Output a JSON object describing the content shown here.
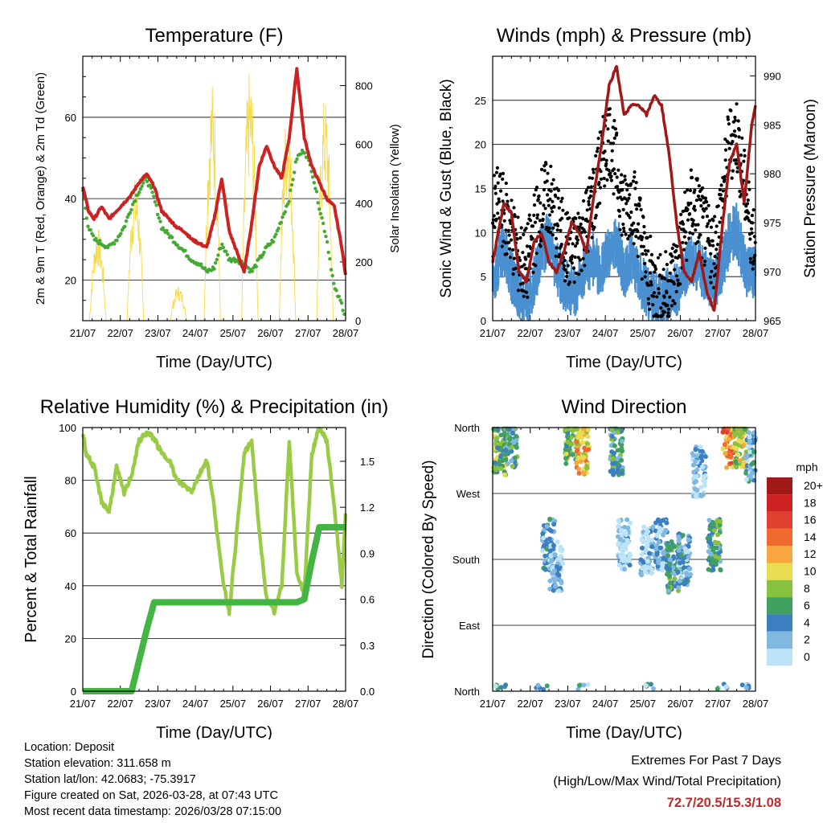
{
  "footer": {
    "location": "Location: Deposit",
    "elevation": "Station elevation: 311.658 m",
    "latlon": "Station lat/lon: 42.0683; -75.3917",
    "created": "Figure created on Sat, 2026-03-28, at 07:43 UTC",
    "timestamp": "Most recent data timestamp: 2026/03/28 07:15:00",
    "extremes_title": "Extremes For Past 7 Days",
    "extremes_subtitle": "(High/Low/Max Wind/Total Precipitation)",
    "extremes_values": "72.7/20.5/15.3/1.08"
  },
  "colors": {
    "temp_red": "#cc2222",
    "dewpoint_green": "#44aa33",
    "solar_yellow": "#f5d94a",
    "gust_black": "#000000",
    "wind_blue": "#4a90d0",
    "pressure_maroon": "#a01818",
    "rh_lightgreen": "#99cc44",
    "rain_green": "#44b544"
  },
  "chart_data": [
    {
      "type": "line",
      "title": "Temperature (F)",
      "xlabel": "Time (Day/UTC)",
      "ylabel": "2m & 9m T (Red, Orange) & 2m Td (Green)",
      "ylabel_right": "Solar Insolation (Yellow)",
      "x_ticks": [
        "21/07",
        "22/07",
        "23/07",
        "24/07",
        "25/07",
        "26/07",
        "27/07",
        "28/07"
      ],
      "x": [
        0,
        0.15,
        0.3,
        0.5,
        0.7,
        0.9,
        1.1,
        1.3,
        1.5,
        1.7,
        1.9,
        2.1,
        2.3,
        2.5,
        2.7,
        2.9,
        3.1,
        3.3,
        3.5,
        3.7,
        3.9,
        4.1,
        4.3,
        4.5,
        4.7,
        4.9,
        5.1,
        5.3,
        5.5,
        5.7,
        5.9,
        6.1,
        6.3,
        6.5,
        6.7,
        6.9,
        7.0
      ],
      "ylim": [
        10,
        75
      ],
      "y_ticks": [
        20,
        40,
        60
      ],
      "y2lim": [
        0,
        900
      ],
      "y2_ticks": [
        0,
        200,
        400,
        600,
        800
      ],
      "series": [
        {
          "name": "2m T",
          "color": "#cc2222",
          "values": [
            43,
            37,
            35,
            38,
            35,
            37,
            39,
            41,
            44,
            46,
            43,
            37,
            35,
            33,
            32,
            30,
            29,
            28,
            35,
            45,
            32,
            27,
            22,
            34,
            48,
            53,
            48,
            45,
            55,
            72,
            55,
            48,
            44,
            40,
            38,
            28,
            21
          ]
        },
        {
          "name": "2m Td",
          "color": "#44aa33",
          "values": [
            42,
            33,
            30,
            29,
            28,
            30,
            33,
            38,
            42,
            45,
            40,
            33,
            31,
            29,
            27,
            25,
            24,
            22,
            23,
            29,
            25,
            25,
            24,
            22,
            25,
            28,
            30,
            35,
            40,
            50,
            52,
            47,
            38,
            30,
            18,
            14,
            11
          ]
        },
        {
          "name": "Solar Insolation",
          "axis": "right",
          "color": "#f5d94a",
          "peaks": [
            [
              0.4,
              320
            ],
            [
              1.4,
              490
            ],
            [
              2.55,
              120
            ],
            [
              3.45,
              820
            ],
            [
              4.45,
              860
            ],
            [
              5.45,
              730
            ],
            [
              6.45,
              770
            ]
          ]
        }
      ]
    },
    {
      "type": "line",
      "title": "Winds (mph) & Pressure (mb)",
      "xlabel": "Time (Day/UTC)",
      "ylabel": "Sonic Wind & Gust (Blue, Black)",
      "ylabel_right": "Station Pressure (Maroon)",
      "x_ticks": [
        "21/07",
        "22/07",
        "23/07",
        "24/07",
        "25/07",
        "26/07",
        "27/07",
        "28/07"
      ],
      "ylim": [
        0,
        30
      ],
      "y_ticks": [
        0,
        5,
        10,
        15,
        20,
        25
      ],
      "y2lim": [
        965,
        992
      ],
      "y2_ticks": [
        965,
        970,
        975,
        980,
        985,
        990
      ],
      "x": [
        0,
        0.1,
        0.3,
        0.5,
        0.7,
        0.9,
        1.1,
        1.3,
        1.5,
        1.7,
        1.9,
        2.1,
        2.3,
        2.5,
        2.7,
        2.9,
        3.1,
        3.3,
        3.5,
        3.7,
        3.9,
        4.1,
        4.3,
        4.5,
        4.7,
        4.9,
        5.1,
        5.3,
        5.5,
        5.7,
        5.9,
        6.1,
        6.3,
        6.5,
        6.7,
        6.9,
        7.0
      ],
      "series": [
        {
          "name": "Station Pressure",
          "axis": "right",
          "color": "#a01818",
          "values": [
            971,
            973,
            977,
            976,
            970,
            969,
            973,
            974,
            971,
            970,
            972,
            975,
            974,
            972,
            978,
            983,
            989,
            991,
            986,
            987,
            987,
            986,
            988,
            987,
            982,
            975,
            970,
            969,
            972,
            968,
            966,
            974,
            981,
            983,
            977,
            985,
            987
          ]
        },
        {
          "name": "Wind",
          "color": "#4a90d0",
          "values": [
            4,
            6,
            8,
            5,
            3,
            2,
            4,
            8,
            9,
            6,
            4,
            3,
            4,
            6,
            7,
            5,
            8,
            9,
            5,
            7,
            5,
            3,
            2,
            2,
            3,
            3,
            5,
            7,
            6,
            5,
            4,
            6,
            9,
            10,
            6,
            5,
            5
          ]
        },
        {
          "name": "Gust",
          "color": "#000000",
          "values": [
            12,
            14,
            13,
            11,
            8,
            7,
            11,
            14,
            15,
            12,
            10,
            8,
            10,
            12,
            15,
            19,
            22,
            18,
            13,
            15,
            12,
            7,
            5,
            4,
            5,
            7,
            11,
            14,
            13,
            10,
            9,
            14,
            21,
            22,
            16,
            11,
            10
          ]
        }
      ]
    },
    {
      "type": "line",
      "title": "Relative Humidity (%) & Precipitation (in)",
      "xlabel": "Time (Day/UTC)",
      "ylabel": "Percent & Total Rainfall",
      "x_ticks": [
        "21/07",
        "22/07",
        "23/07",
        "24/07",
        "25/07",
        "26/07",
        "27/07",
        "28/07"
      ],
      "ylim": [
        0,
        100
      ],
      "y_ticks": [
        0,
        20,
        40,
        60,
        80,
        100
      ],
      "y2lim": [
        0,
        1.72
      ],
      "y2_ticks": [
        "0.0",
        "0.3",
        "0.6",
        "0.9",
        "1.2",
        "1.5"
      ],
      "x": [
        0,
        0.1,
        0.3,
        0.5,
        0.7,
        0.9,
        1.1,
        1.3,
        1.5,
        1.7,
        1.9,
        2.1,
        2.3,
        2.5,
        2.7,
        2.9,
        3.1,
        3.3,
        3.5,
        3.7,
        3.9,
        4.1,
        4.3,
        4.5,
        4.7,
        4.9,
        5.1,
        5.3,
        5.5,
        5.7,
        5.9,
        6.1,
        6.3,
        6.5,
        6.7,
        6.9,
        7.0
      ],
      "series": [
        {
          "name": "Relative Humidity",
          "color": "#99cc44",
          "values": [
            98,
            90,
            85,
            72,
            68,
            85,
            75,
            82,
            95,
            98,
            96,
            90,
            88,
            80,
            78,
            76,
            82,
            88,
            70,
            45,
            30,
            60,
            90,
            95,
            60,
            35,
            30,
            40,
            95,
            45,
            37,
            90,
            100,
            95,
            70,
            40,
            68
          ]
        },
        {
          "name": "Total Rainfall",
          "axis": "right",
          "color": "#44b544",
          "values": [
            0,
            0,
            0,
            0,
            0,
            0,
            0,
            0,
            0.2,
            0.4,
            0.58,
            0.58,
            0.58,
            0.58,
            0.58,
            0.58,
            0.58,
            0.58,
            0.58,
            0.58,
            0.58,
            0.58,
            0.58,
            0.58,
            0.58,
            0.58,
            0.58,
            0.58,
            0.58,
            0.58,
            0.6,
            0.85,
            1.07,
            1.07,
            1.07,
            1.07,
            1.07
          ]
        }
      ]
    },
    {
      "type": "scatter",
      "title": "Wind Direction",
      "xlabel": "Time (Day/UTC)",
      "ylabel": "Direction (Colored By Speed)",
      "x_ticks": [
        "21/07",
        "22/07",
        "23/07",
        "24/07",
        "25/07",
        "26/07",
        "27/07",
        "28/07"
      ],
      "y_ticks": [
        "North",
        "East",
        "South",
        "West",
        "North"
      ],
      "ylim": [
        0,
        360
      ],
      "legend_title": "mph",
      "legend": [
        "20+",
        "18",
        "16",
        "14",
        "12",
        "10",
        "8",
        "6",
        "4",
        "2",
        "0"
      ],
      "legend_colors": [
        "#a01a1a",
        "#cc2222",
        "#e04030",
        "#f06a30",
        "#f7a640",
        "#e8dd50",
        "#88c040",
        "#40a060",
        "#3c7fc0",
        "#80b8e0",
        "#bde3f7"
      ],
      "clusters": [
        {
          "x": 0.2,
          "dir": 330,
          "speed": 8
        },
        {
          "x": 0.5,
          "dir": 340,
          "speed": 6
        },
        {
          "x": 1.5,
          "dir": 200,
          "speed": 4
        },
        {
          "x": 1.7,
          "dir": 170,
          "speed": 3
        },
        {
          "x": 2.1,
          "dir": 345,
          "speed": 8
        },
        {
          "x": 2.4,
          "dir": 330,
          "speed": 12
        },
        {
          "x": 3.3,
          "dir": 330,
          "speed": 6
        },
        {
          "x": 3.5,
          "dir": 200,
          "speed": 2
        },
        {
          "x": 4.1,
          "dir": 190,
          "speed": 2
        },
        {
          "x": 4.5,
          "dir": 200,
          "speed": 3
        },
        {
          "x": 4.8,
          "dir": 170,
          "speed": 6
        },
        {
          "x": 5.1,
          "dir": 180,
          "speed": 4
        },
        {
          "x": 5.5,
          "dir": 300,
          "speed": 3
        },
        {
          "x": 5.9,
          "dir": 200,
          "speed": 6
        },
        {
          "x": 6.3,
          "dir": 340,
          "speed": 14
        },
        {
          "x": 6.6,
          "dir": 340,
          "speed": 10
        },
        {
          "x": 6.9,
          "dir": 320,
          "speed": 4
        }
      ]
    }
  ]
}
